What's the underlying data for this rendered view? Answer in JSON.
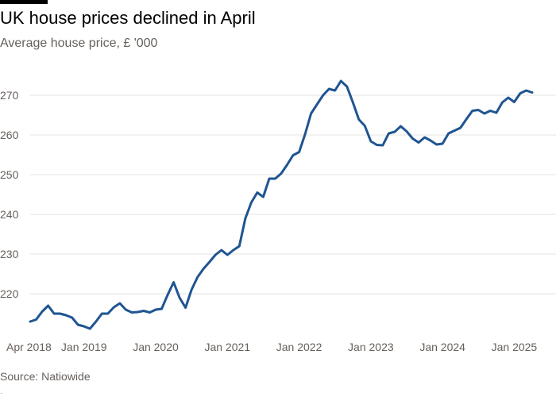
{
  "header": {
    "title": "UK house prices declined in April",
    "subtitle": "Average house price, £ '000"
  },
  "footer": {
    "source": "Source: Natiowide",
    "separator": "."
  },
  "chart_data": {
    "type": "line",
    "title": "UK house prices declined in April",
    "subtitle": "Average house price, £ '000",
    "xlabel": "",
    "ylabel": "",
    "ylim": [
      210,
      275
    ],
    "y_ticks": [
      220,
      230,
      240,
      250,
      260,
      270
    ],
    "x_ticks": [
      {
        "label": "Apr 2018",
        "date": "2018-04"
      },
      {
        "label": "Jan 2019",
        "date": "2019-01"
      },
      {
        "label": "Jan 2020",
        "date": "2020-01"
      },
      {
        "label": "Jan 2021",
        "date": "2021-01"
      },
      {
        "label": "Jan 2022",
        "date": "2022-01"
      },
      {
        "label": "Jan 2023",
        "date": "2023-01"
      },
      {
        "label": "Jan 2024",
        "date": "2024-01"
      },
      {
        "label": "Jan 2025",
        "date": "2025-01"
      }
    ],
    "grid": true,
    "line_color": "#1f5591",
    "series": [
      {
        "x": [
          "2018-04",
          "2018-05",
          "2018-06",
          "2018-07",
          "2018-08",
          "2018-09",
          "2018-10",
          "2018-11",
          "2018-12",
          "2019-01",
          "2019-02",
          "2019-03",
          "2019-04",
          "2019-05",
          "2019-06",
          "2019-07",
          "2019-08",
          "2019-09",
          "2019-10",
          "2019-11",
          "2019-12",
          "2020-01",
          "2020-02",
          "2020-03",
          "2020-04",
          "2020-05",
          "2020-06",
          "2020-07",
          "2020-08",
          "2020-09",
          "2020-10",
          "2020-11",
          "2020-12",
          "2021-01",
          "2021-02",
          "2021-03",
          "2021-04",
          "2021-05",
          "2021-06",
          "2021-07",
          "2021-08",
          "2021-09",
          "2021-10",
          "2021-11",
          "2021-12",
          "2022-01",
          "2022-02",
          "2022-03",
          "2022-04",
          "2022-05",
          "2022-06",
          "2022-07",
          "2022-08",
          "2022-09",
          "2022-10",
          "2022-11",
          "2022-12",
          "2023-01",
          "2023-02",
          "2023-03",
          "2023-04",
          "2023-05",
          "2023-06",
          "2023-07",
          "2023-08",
          "2023-09",
          "2023-10",
          "2023-11",
          "2023-12",
          "2024-01",
          "2024-02",
          "2024-03",
          "2024-04",
          "2024-05",
          "2024-06",
          "2024-07",
          "2024-08",
          "2024-09",
          "2024-10",
          "2024-11",
          "2024-12",
          "2025-01",
          "2025-02",
          "2025-03",
          "2025-04"
        ],
        "values": [
          213,
          213.5,
          215.5,
          217,
          215,
          215,
          214.6,
          214,
          212.2,
          211.8,
          211.2,
          213,
          215,
          215,
          216.6,
          217.6,
          216,
          215.3,
          215.4,
          215.7,
          215.3,
          216,
          216.2,
          219.7,
          222.9,
          219,
          216.5,
          221,
          224.2,
          226.3,
          228,
          229.8,
          231,
          229.8,
          231,
          232,
          239,
          243,
          245.5,
          244.4,
          249,
          249,
          250.3,
          252.5,
          254.9,
          255.7,
          260.2,
          265.4,
          267.7,
          270,
          271.6,
          271.2,
          273.6,
          272.2,
          268.2,
          263.9,
          262.3,
          258.4,
          257.5,
          257.4,
          260.4,
          260.8,
          262.2,
          260.9,
          259.1,
          258.1,
          259.4,
          258.6,
          257.6,
          257.8,
          260.4,
          261.1,
          261.8,
          264,
          266.1,
          266.3,
          265.4,
          266.1,
          265.6,
          268.2,
          269.4,
          268.3,
          270.5,
          271.2,
          270.7
        ]
      }
    ]
  }
}
